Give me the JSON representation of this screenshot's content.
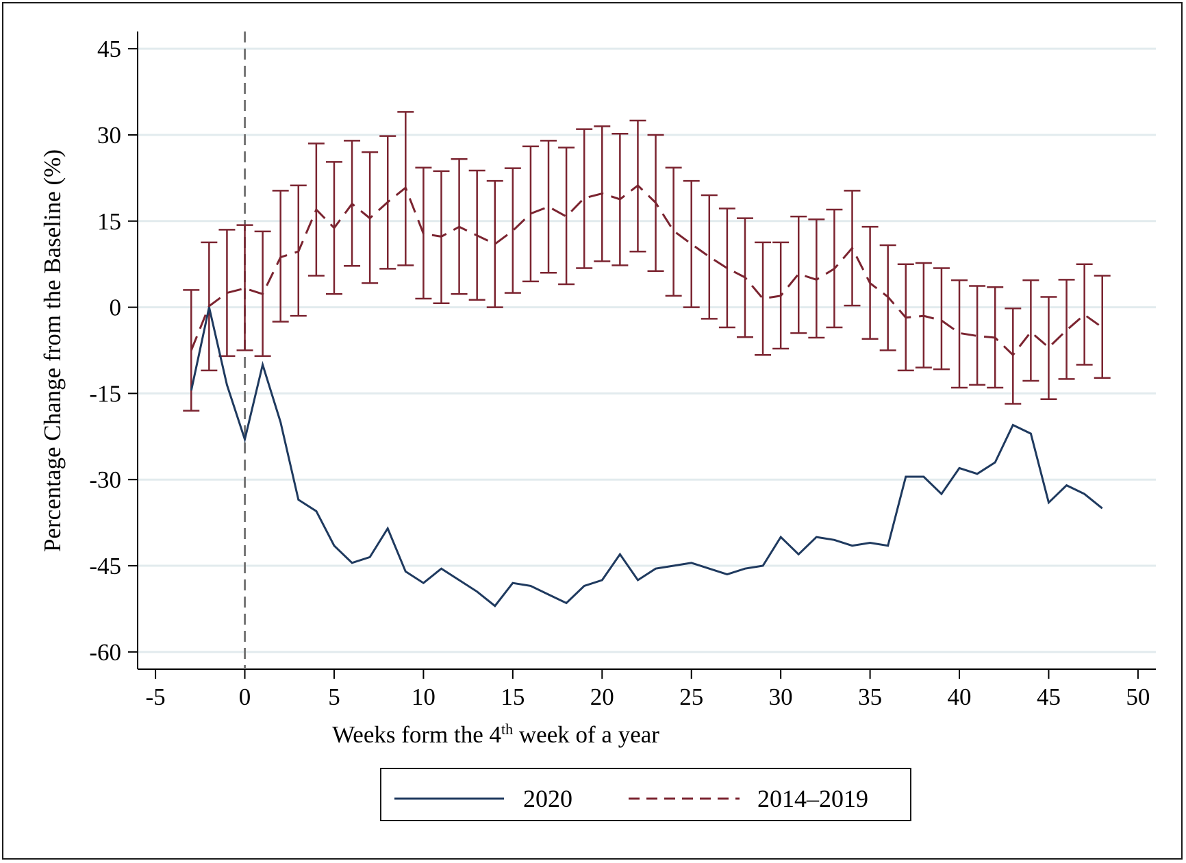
{
  "chart_data": {
    "type": "line",
    "xlabel_main": "Weeks form the 4",
    "xlabel_sup": "th",
    "xlabel_rest": " week of a year",
    "ylabel": "Percentage Change from the Baseline (%)",
    "xlim": [
      -6,
      51
    ],
    "ylim": [
      -63,
      48
    ],
    "x_ticks": [
      -5,
      0,
      5,
      10,
      15,
      20,
      25,
      30,
      35,
      40,
      45,
      50
    ],
    "y_ticks": [
      45,
      30,
      15,
      0,
      -15,
      -30,
      -45,
      -60
    ],
    "grid": true,
    "vline_x": 0,
    "legend_position": "bottom-center",
    "colors": {
      "series_2020": "#1f3a5f",
      "series_hist": "#7b2430",
      "grid": "#e2ebee",
      "vline": "#777777"
    },
    "series": [
      {
        "name": "2020",
        "style": "solid",
        "x": [
          -3,
          -2,
          -1,
          0,
          1,
          2,
          3,
          4,
          5,
          6,
          7,
          8,
          9,
          10,
          11,
          12,
          13,
          14,
          15,
          16,
          17,
          18,
          19,
          20,
          21,
          22,
          23,
          24,
          25,
          26,
          27,
          28,
          29,
          30,
          31,
          32,
          33,
          34,
          35,
          36,
          37,
          38,
          39,
          40,
          41,
          42,
          43,
          44,
          45,
          46,
          47,
          48
        ],
        "y": [
          -14.5,
          0,
          -13.5,
          -23,
          -10,
          -20,
          -33.5,
          -35.5,
          -41.5,
          -44.5,
          -43.5,
          -38.5,
          -46,
          -48,
          -45.5,
          -47.5,
          -49.5,
          -52,
          -48,
          -48.5,
          -50,
          -51.5,
          -48.5,
          -47.5,
          -43,
          -47.5,
          -45.5,
          -45,
          -44.5,
          -45.5,
          -46.5,
          -45.5,
          -45,
          -40,
          -43,
          -40,
          -40.5,
          -41.5,
          -41,
          -41.5,
          -29.5,
          -29.5,
          -32.5,
          -28,
          -29,
          -27,
          -20.5,
          -22,
          -34,
          -31,
          -32.5,
          -35
        ]
      },
      {
        "name": "2014–2019",
        "style": "dashed",
        "x": [
          -3,
          -2,
          -1,
          0,
          1,
          2,
          3,
          4,
          5,
          6,
          7,
          8,
          9,
          10,
          11,
          12,
          13,
          14,
          15,
          16,
          17,
          18,
          19,
          20,
          21,
          22,
          23,
          24,
          25,
          26,
          27,
          28,
          29,
          30,
          31,
          32,
          33,
          34,
          35,
          36,
          37,
          38,
          39,
          40,
          41,
          42,
          43,
          44,
          45,
          46,
          47,
          48
        ],
        "y": [
          -7.5,
          0.2,
          2.5,
          3.3,
          2.3,
          8.7,
          9.7,
          17,
          13.8,
          18,
          15.5,
          18.3,
          20.8,
          12.8,
          12.3,
          14,
          12.5,
          11,
          13.3,
          16.3,
          17.5,
          15.8,
          19,
          19.8,
          18.8,
          21.2,
          18.2,
          13.3,
          11,
          8.8,
          6.8,
          5.2,
          1.5,
          2,
          5.8,
          4.8,
          6.7,
          10.3,
          4.2,
          1.8,
          -1.8,
          -1.5,
          -2.3,
          -4.5,
          -5,
          -5.3,
          -8.3,
          -4.3,
          -7,
          -4,
          -1.3,
          -3.5
        ],
        "ci_low": [
          -18,
          -11,
          -8.5,
          -7.5,
          -8.5,
          -2.5,
          -1.5,
          5.5,
          2.3,
          7.2,
          4.2,
          6.7,
          7.3,
          1.5,
          0.7,
          2.3,
          1.3,
          0,
          2.5,
          4.5,
          6,
          4,
          6.8,
          8,
          7.3,
          9.7,
          6.3,
          2,
          0,
          -2,
          -3.5,
          -5.2,
          -8.3,
          -7.2,
          -4.5,
          -5.3,
          -3.5,
          0.3,
          -5.5,
          -7.5,
          -11,
          -10.5,
          -10.8,
          -14,
          -13.5,
          -14,
          -16.8,
          -12.8,
          -16,
          -12.5,
          -10,
          -12.3
        ],
        "ci_high": [
          3,
          11.3,
          13.5,
          14.3,
          13.2,
          20.3,
          21.2,
          28.5,
          25.3,
          29,
          27,
          29.8,
          34,
          24.3,
          23.7,
          25.8,
          23.8,
          22,
          24.2,
          28,
          29,
          27.8,
          31,
          31.5,
          30.2,
          32.5,
          30,
          24.3,
          22,
          19.5,
          17.2,
          15.5,
          11.3,
          11.3,
          15.8,
          15.3,
          17,
          20.3,
          14,
          10.8,
          7.5,
          7.7,
          6.8,
          4.7,
          3.7,
          3.5,
          -0.2,
          4.7,
          1.8,
          4.8,
          7.5,
          5.5
        ]
      }
    ]
  }
}
